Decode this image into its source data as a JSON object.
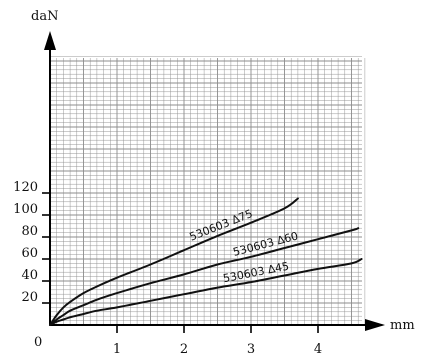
{
  "chart_data": {
    "type": "line",
    "xlabel": "mm",
    "ylabel": "daN",
    "origin_label": "0",
    "xlim": [
      0,
      4.8
    ],
    "ylim": [
      0,
      125
    ],
    "x_ticks": [
      1,
      2,
      3,
      4
    ],
    "y_ticks": [
      20,
      40,
      60,
      80,
      100,
      120
    ],
    "grid": true,
    "grid_minor_x": 0.1,
    "grid_minor_y": 4,
    "colors": {
      "line": "#111111",
      "grid": "#8c8c8c",
      "axis": "#000000"
    },
    "series": [
      {
        "name": "530603 ∆75",
        "x": [
          0,
          0.1,
          0.2,
          0.3,
          0.5,
          0.7,
          1.0,
          1.5,
          2.0,
          2.5,
          3.0,
          3.5,
          3.7
        ],
        "y": [
          0,
          9,
          16,
          21,
          29,
          35,
          43,
          55,
          68,
          81,
          93,
          106,
          115
        ]
      },
      {
        "name": "530603 ∆60",
        "x": [
          0,
          0.1,
          0.2,
          0.3,
          0.5,
          0.7,
          1.0,
          1.5,
          2.0,
          2.5,
          3.0,
          3.5,
          4.0,
          4.5,
          4.6
        ],
        "y": [
          0,
          5,
          9,
          13,
          18,
          23,
          29,
          38,
          46,
          55,
          62,
          70,
          78,
          86,
          88
        ]
      },
      {
        "name": "530603 ∆45",
        "x": [
          0,
          0.1,
          0.2,
          0.3,
          0.5,
          0.7,
          1.0,
          1.5,
          2.0,
          2.5,
          3.0,
          3.5,
          4.0,
          4.5,
          4.65
        ],
        "y": [
          0,
          3,
          5,
          7,
          10,
          13,
          16,
          22,
          28,
          34,
          39,
          45,
          51,
          56,
          60
        ]
      }
    ]
  }
}
